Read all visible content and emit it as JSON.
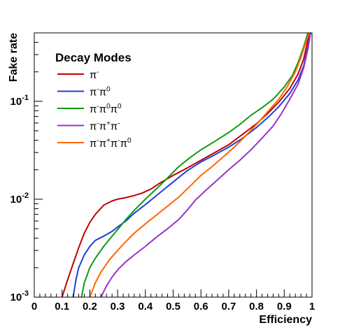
{
  "chart_data": {
    "type": "line",
    "title": "",
    "xlabel": "Efficiency",
    "ylabel": "Fake rate",
    "xlim": [
      0,
      1
    ],
    "ylim": [
      0.001,
      0.5
    ],
    "yscale": "log",
    "grid": false,
    "legend_title": "Decay Modes",
    "legend_placement": "top-left",
    "x_ticks": [
      "0",
      "0.1",
      "0.2",
      "0.3",
      "0.4",
      "0.5",
      "0.6",
      "0.7",
      "0.8",
      "0.9",
      "1"
    ],
    "y_ticks": [
      {
        "base": "10",
        "exp": "-3"
      },
      {
        "base": "10",
        "exp": "-2"
      },
      {
        "base": "10",
        "exp": "-1"
      }
    ],
    "series": [
      {
        "name": "π⁻",
        "label_base": "π",
        "label_sup": "-",
        "color": "#c00000",
        "points": [
          [
            0.1,
            0.001
          ],
          [
            0.12,
            0.0015
          ],
          [
            0.14,
            0.0022
          ],
          [
            0.16,
            0.0032
          ],
          [
            0.18,
            0.0045
          ],
          [
            0.2,
            0.0058
          ],
          [
            0.22,
            0.007
          ],
          [
            0.25,
            0.0087
          ],
          [
            0.28,
            0.0096
          ],
          [
            0.3,
            0.01
          ],
          [
            0.33,
            0.0104
          ],
          [
            0.36,
            0.0109
          ],
          [
            0.39,
            0.0116
          ],
          [
            0.42,
            0.0127
          ],
          [
            0.45,
            0.0145
          ],
          [
            0.5,
            0.0175
          ],
          [
            0.55,
            0.0208
          ],
          [
            0.6,
            0.025
          ],
          [
            0.65,
            0.03
          ],
          [
            0.7,
            0.036
          ],
          [
            0.75,
            0.046
          ],
          [
            0.8,
            0.059
          ],
          [
            0.84,
            0.075
          ],
          [
            0.88,
            0.098
          ],
          [
            0.92,
            0.135
          ],
          [
            0.95,
            0.19
          ],
          [
            0.97,
            0.27
          ],
          [
            0.985,
            0.42
          ],
          [
            0.995,
            0.5
          ]
        ]
      },
      {
        "name": "π⁻π⁰",
        "label_base": "π",
        "label_sup": "-π",
        "label_sup2": "0",
        "color": "#1f3fd6",
        "points": [
          [
            0.14,
            0.001
          ],
          [
            0.15,
            0.0015
          ],
          [
            0.16,
            0.002
          ],
          [
            0.18,
            0.0027
          ],
          [
            0.2,
            0.0033
          ],
          [
            0.22,
            0.0038
          ],
          [
            0.25,
            0.0042
          ],
          [
            0.28,
            0.0047
          ],
          [
            0.3,
            0.0052
          ],
          [
            0.33,
            0.006
          ],
          [
            0.36,
            0.0072
          ],
          [
            0.4,
            0.0088
          ],
          [
            0.45,
            0.0115
          ],
          [
            0.5,
            0.015
          ],
          [
            0.55,
            0.0195
          ],
          [
            0.6,
            0.024
          ],
          [
            0.65,
            0.0285
          ],
          [
            0.7,
            0.034
          ],
          [
            0.75,
            0.042
          ],
          [
            0.8,
            0.054
          ],
          [
            0.84,
            0.068
          ],
          [
            0.88,
            0.088
          ],
          [
            0.92,
            0.12
          ],
          [
            0.95,
            0.165
          ],
          [
            0.97,
            0.23
          ],
          [
            0.985,
            0.36
          ],
          [
            0.995,
            0.5
          ]
        ]
      },
      {
        "name": "π⁻π⁰π⁰",
        "label_base": "π",
        "label_sup": "-π",
        "label_sup2": "0π",
        "label_sup3": "0",
        "color": "#0e9b0e",
        "points": [
          [
            0.17,
            0.001
          ],
          [
            0.18,
            0.0014
          ],
          [
            0.2,
            0.002
          ],
          [
            0.22,
            0.0025
          ],
          [
            0.25,
            0.0033
          ],
          [
            0.28,
            0.0042
          ],
          [
            0.3,
            0.0049
          ],
          [
            0.33,
            0.0062
          ],
          [
            0.36,
            0.0077
          ],
          [
            0.4,
            0.01
          ],
          [
            0.44,
            0.0128
          ],
          [
            0.48,
            0.0165
          ],
          [
            0.52,
            0.0215
          ],
          [
            0.56,
            0.0265
          ],
          [
            0.6,
            0.032
          ],
          [
            0.65,
            0.039
          ],
          [
            0.7,
            0.048
          ],
          [
            0.74,
            0.058
          ],
          [
            0.78,
            0.072
          ],
          [
            0.82,
            0.086
          ],
          [
            0.86,
            0.105
          ],
          [
            0.9,
            0.14
          ],
          [
            0.93,
            0.185
          ],
          [
            0.95,
            0.25
          ],
          [
            0.97,
            0.36
          ],
          [
            0.985,
            0.5
          ]
        ]
      },
      {
        "name": "π⁻π⁺π⁻",
        "label_base": "π",
        "label_sup": "-π",
        "label_sup2": "+π",
        "label_sup3": "-",
        "color": "#9932cc",
        "points": [
          [
            0.24,
            0.001
          ],
          [
            0.26,
            0.0013
          ],
          [
            0.28,
            0.0016
          ],
          [
            0.3,
            0.0019
          ],
          [
            0.33,
            0.0023
          ],
          [
            0.36,
            0.0027
          ],
          [
            0.4,
            0.0033
          ],
          [
            0.44,
            0.0041
          ],
          [
            0.48,
            0.005
          ],
          [
            0.52,
            0.0062
          ],
          [
            0.55,
            0.0077
          ],
          [
            0.58,
            0.0098
          ],
          [
            0.62,
            0.0125
          ],
          [
            0.66,
            0.0158
          ],
          [
            0.7,
            0.02
          ],
          [
            0.74,
            0.025
          ],
          [
            0.78,
            0.032
          ],
          [
            0.82,
            0.042
          ],
          [
            0.86,
            0.056
          ],
          [
            0.89,
            0.075
          ],
          [
            0.92,
            0.105
          ],
          [
            0.95,
            0.15
          ],
          [
            0.97,
            0.22
          ],
          [
            0.985,
            0.34
          ],
          [
            0.995,
            0.5
          ]
        ]
      },
      {
        "name": "π⁻π⁺π⁻π⁰",
        "label_base": "π",
        "label_sup": "-π",
        "label_sup2": "+π",
        "label_sup3": "-π",
        "label_sup4": "0",
        "color": "#ff6600",
        "points": [
          [
            0.2,
            0.001
          ],
          [
            0.22,
            0.0014
          ],
          [
            0.24,
            0.0018
          ],
          [
            0.27,
            0.0024
          ],
          [
            0.3,
            0.003
          ],
          [
            0.33,
            0.0037
          ],
          [
            0.36,
            0.0045
          ],
          [
            0.4,
            0.0056
          ],
          [
            0.44,
            0.0069
          ],
          [
            0.48,
            0.0085
          ],
          [
            0.52,
            0.0105
          ],
          [
            0.56,
            0.0135
          ],
          [
            0.6,
            0.0175
          ],
          [
            0.64,
            0.0215
          ],
          [
            0.68,
            0.027
          ],
          [
            0.72,
            0.034
          ],
          [
            0.76,
            0.044
          ],
          [
            0.8,
            0.058
          ],
          [
            0.84,
            0.078
          ],
          [
            0.88,
            0.105
          ],
          [
            0.91,
            0.14
          ],
          [
            0.94,
            0.2
          ],
          [
            0.96,
            0.28
          ],
          [
            0.98,
            0.42
          ],
          [
            0.99,
            0.5
          ]
        ]
      }
    ]
  }
}
